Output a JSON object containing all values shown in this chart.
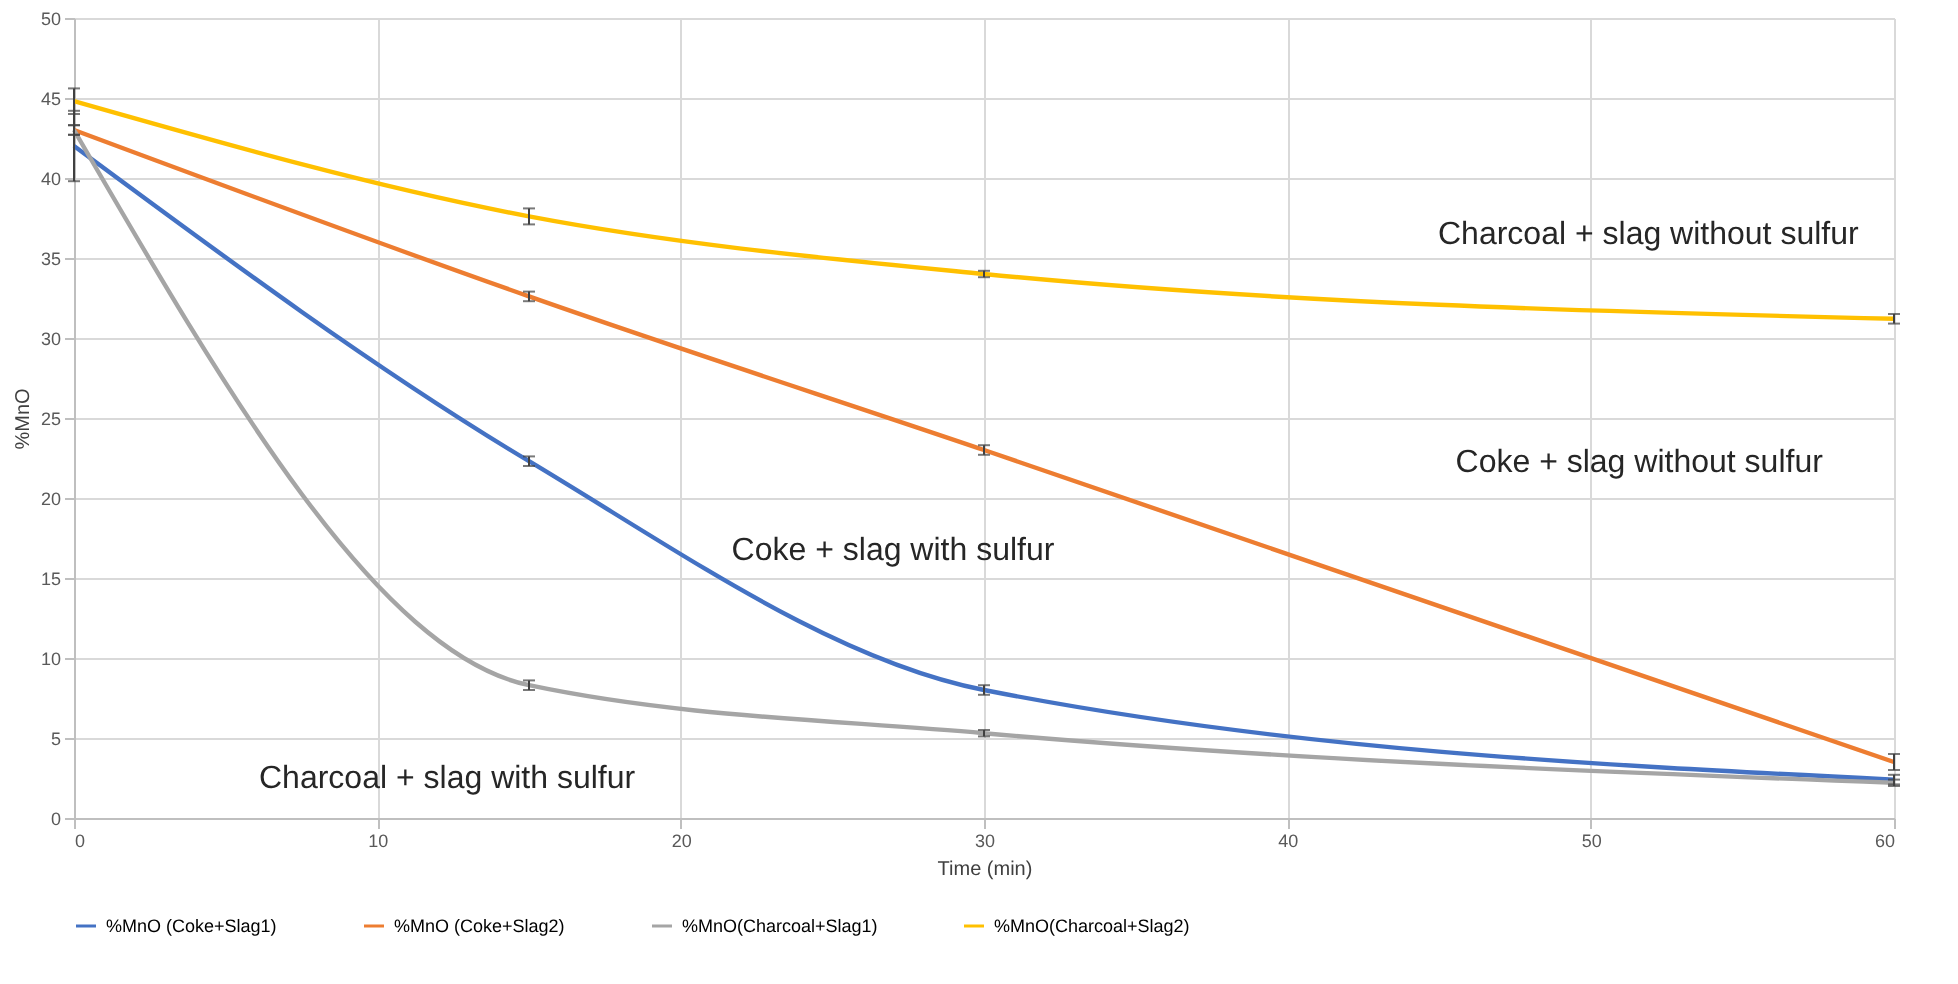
{
  "chart_data": {
    "type": "line",
    "xlabel": "Time (min)",
    "ylabel": "%MnO",
    "x": [
      0,
      15,
      30,
      60
    ],
    "series": [
      {
        "name": "%MnO (Coke+Slag1)",
        "color": "#4472c4",
        "values": [
          42,
          22.3,
          8,
          2.4
        ],
        "errors": [
          2.2,
          0.3,
          0.3,
          0.3
        ]
      },
      {
        "name": "%MnO (Coke+Slag2)",
        "color": "#ed7d31",
        "values": [
          43,
          32.6,
          23,
          3.5
        ],
        "errors": [
          0.3,
          0.3,
          0.3,
          0.5
        ]
      },
      {
        "name": "%MnO(Charcoal+Slag1)",
        "color": "#a5a5a5",
        "values": [
          43,
          8.3,
          5.3,
          2.2
        ],
        "errors": [
          0.3,
          0.3,
          0.2,
          0.2
        ]
      },
      {
        "name": "%MnO(Charcoal+Slag2)",
        "color": "#ffc000",
        "values": [
          44.8,
          37.6,
          34,
          31.2
        ],
        "errors": [
          0.8,
          0.5,
          0.2,
          0.3
        ]
      }
    ],
    "annotations": [
      "Charcoal + slag without sulfur",
      "Coke + slag without sulfur",
      "Coke + slag with sulfur",
      "Charcoal + slag with sulfur"
    ],
    "xlim": [
      0,
      60
    ],
    "xticks": [
      0,
      10,
      20,
      30,
      40,
      50,
      60
    ],
    "ylim": [
      0,
      50
    ],
    "yticks": [
      0,
      5,
      10,
      15,
      20,
      25,
      30,
      35,
      40,
      45,
      50
    ],
    "grid": true,
    "legend": "bottom",
    "marker": "none",
    "line_style": "solid"
  }
}
